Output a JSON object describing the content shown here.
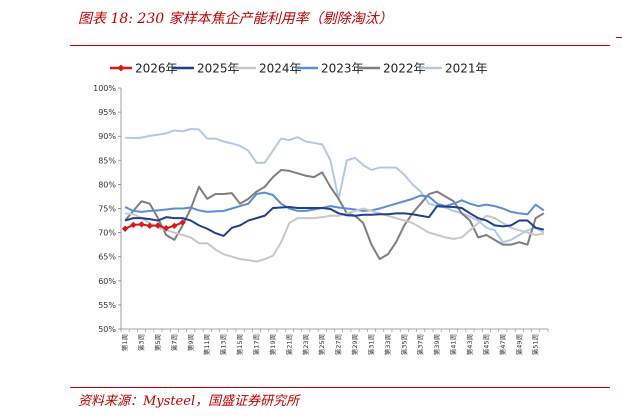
{
  "figure": {
    "title": "图表 18:  230 家样本焦企产能利用率（剔除淘汰）",
    "source": "资料来源：Mysteel，国盛证券研究所"
  },
  "chart_data": {
    "type": "line",
    "ylim": [
      50,
      100
    ],
    "yticks": [
      "50%",
      "55%",
      "60%",
      "65%",
      "70%",
      "75%",
      "80%",
      "85%",
      "90%",
      "95%",
      "100%"
    ],
    "xlabels": [
      "第1周",
      "第3周",
      "第5周",
      "第7周",
      "第9周",
      "第11周",
      "第13周",
      "第15周",
      "第17周",
      "第19周",
      "第21周",
      "第23周",
      "第25周",
      "第27周",
      "第29周",
      "第31周",
      "第33周",
      "第35周",
      "第37周",
      "第39周",
      "第41周",
      "第43周",
      "第45周",
      "第47周",
      "第49周",
      "第51周"
    ],
    "legend_position": "top",
    "grid": false,
    "series": [
      {
        "name": "2026年",
        "color": "#d7191c",
        "marker": "diamond",
        "values": [
          70.8,
          71.6,
          71.7,
          71.4,
          71.5,
          70.9,
          71.4,
          72.1
        ]
      },
      {
        "name": "2025年",
        "color": "#1f3f8f",
        "values": [
          72.5,
          73.0,
          73.0,
          72.8,
          72.5,
          73.2,
          73.0,
          73.0,
          72.5,
          71.5,
          70.8,
          69.9,
          69.3,
          71.0,
          71.5,
          72.5,
          73.0,
          73.5,
          75.1,
          75.2,
          75.3,
          75.1,
          75.1,
          75.1,
          75.1,
          74.9,
          74.0,
          73.6,
          73.5,
          73.7,
          73.7,
          73.8,
          73.8,
          74.0,
          74.0,
          73.8,
          73.5,
          73.2,
          75.5,
          75.4,
          75.3,
          75.1,
          74.0,
          73.0,
          72.5,
          71.5,
          71.3,
          71.5,
          72.5,
          72.5,
          71.0,
          70.6
        ]
      },
      {
        "name": "2024年",
        "color": "#c8c8c8",
        "values": [
          74.0,
          73.8,
          73.0,
          72.0,
          71.0,
          70.5,
          70.0,
          69.5,
          69.0,
          67.8,
          67.8,
          66.5,
          65.5,
          65.0,
          64.5,
          64.3,
          64.0,
          64.5,
          65.2,
          68.0,
          72.0,
          73.0,
          73.0,
          73.0,
          73.2,
          73.5,
          73.5,
          74.0,
          74.5,
          75.0,
          74.5,
          74.0,
          73.5,
          73.0,
          72.5,
          72.0,
          71.0,
          70.0,
          69.5,
          69.0,
          68.7,
          69.0,
          70.5,
          72.0,
          73.5,
          73.0,
          72.0,
          71.0,
          70.5,
          70.0,
          69.5,
          69.8
        ]
      },
      {
        "name": "2023年",
        "color": "#5b8fd0",
        "values": [
          75.3,
          74.5,
          74.3,
          74.5,
          74.6,
          74.8,
          75.0,
          75.0,
          75.2,
          74.6,
          74.3,
          74.4,
          74.5,
          75.0,
          75.5,
          76.0,
          78.0,
          78.3,
          77.8,
          76.0,
          75.0,
          74.5,
          74.5,
          74.8,
          75.1,
          75.5,
          75.2,
          75.0,
          74.8,
          74.5,
          74.6,
          75.0,
          75.5,
          76.0,
          76.5,
          77.0,
          77.7,
          77.5,
          76.0,
          75.5,
          76.0,
          76.7,
          76.0,
          75.5,
          75.8,
          75.5,
          75.0,
          74.3,
          74.0,
          73.8,
          75.8,
          74.6
        ]
      },
      {
        "name": "2022年",
        "color": "#7f7f7f",
        "values": [
          72.5,
          74.5,
          76.5,
          76.0,
          73.0,
          69.5,
          68.5,
          71.5,
          75.0,
          79.5,
          77.0,
          78.0,
          78.0,
          78.2,
          76.0,
          77.0,
          78.5,
          79.5,
          81.5,
          83.0,
          82.8,
          82.3,
          81.8,
          81.5,
          82.5,
          79.5,
          77.0,
          74.0,
          73.5,
          72.0,
          67.5,
          64.5,
          65.5,
          68.0,
          71.5,
          74.0,
          76.0,
          78.0,
          78.5,
          77.5,
          76.5,
          74.0,
          72.5,
          69.0,
          69.5,
          68.5,
          67.5,
          67.5,
          68.0,
          67.5,
          73.0,
          74.0
        ]
      },
      {
        "name": "2021年",
        "color": "#b4c8e6",
        "values": [
          89.7,
          89.6,
          89.7,
          90.1,
          90.3,
          90.6,
          91.2,
          91.0,
          91.5,
          91.4,
          89.5,
          89.5,
          88.9,
          88.5,
          88.0,
          87.0,
          84.5,
          84.5,
          87.0,
          89.5,
          89.2,
          89.8,
          88.9,
          88.6,
          88.3,
          85.0,
          77.0,
          85.0,
          85.5,
          84.0,
          83.0,
          83.5,
          83.5,
          83.5,
          82.0,
          80.0,
          78.5,
          76.0,
          75.5,
          75.2,
          74.5,
          74.0,
          73.3,
          72.5,
          71.0,
          70.5,
          68.0,
          68.5,
          69.5,
          70.5,
          71.0,
          70.0
        ]
      }
    ]
  }
}
